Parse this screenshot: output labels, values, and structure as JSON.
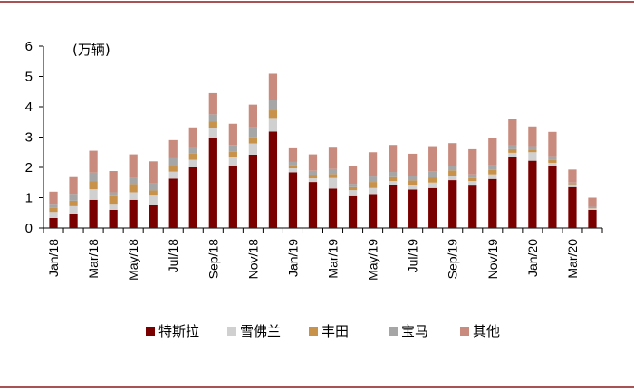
{
  "chart_data": {
    "type": "bar",
    "stacked": true,
    "unit_label": "(万辆)",
    "ylim": [
      0,
      6
    ],
    "yticks": [
      "0",
      "1",
      "2",
      "3",
      "4",
      "5",
      "6"
    ],
    "grid": false,
    "legend_position": "bottom",
    "categories": [
      "Jan/18",
      "Feb/18",
      "Mar/18",
      "Apr/18",
      "May/18",
      "Jun/18",
      "Jul/18",
      "Aug/18",
      "Sep/18",
      "Oct/18",
      "Nov/18",
      "Dec/18",
      "Jan/19",
      "Feb/19",
      "Mar/19",
      "Apr/19",
      "May/19",
      "Jun/19",
      "Jul/19",
      "Aug/19",
      "Sep/19",
      "Oct/19",
      "Nov/19",
      "Dec/19",
      "Jan/20",
      "Feb/20",
      "Mar/20",
      "Apr/20"
    ],
    "xtick_labels": [
      "Jan/18",
      "",
      "Mar/18",
      "",
      "May/18",
      "",
      "Jul/18",
      "",
      "Sep/18",
      "",
      "Nov/18",
      "",
      "Jan/19",
      "",
      "Mar/19",
      "",
      "May/19",
      "",
      "Jul/19",
      "",
      "Sep/19",
      "",
      "Nov/19",
      "",
      "Jan/20",
      "",
      "Mar/20",
      ""
    ],
    "series": [
      {
        "name": "特斯拉",
        "color": "#7a0000",
        "values": [
          0.33,
          0.45,
          0.93,
          0.6,
          0.93,
          0.77,
          1.63,
          2.0,
          2.97,
          2.04,
          2.42,
          3.18,
          1.84,
          1.52,
          1.3,
          1.05,
          1.12,
          1.43,
          1.27,
          1.32,
          1.58,
          1.4,
          1.62,
          2.33,
          2.22,
          2.03,
          1.35,
          0.6
        ]
      },
      {
        "name": "雪佛兰",
        "color": "#d0d0d0",
        "values": [
          0.2,
          0.27,
          0.35,
          0.2,
          0.25,
          0.3,
          0.23,
          0.25,
          0.33,
          0.3,
          0.37,
          0.45,
          0.13,
          0.12,
          0.35,
          0.2,
          0.2,
          0.12,
          0.15,
          0.18,
          0.15,
          0.15,
          0.15,
          0.15,
          0.28,
          0.12,
          0.05,
          0.05
        ]
      },
      {
        "name": "丰田",
        "color": "#c8924a",
        "values": [
          0.13,
          0.18,
          0.27,
          0.25,
          0.27,
          0.17,
          0.17,
          0.2,
          0.22,
          0.17,
          0.2,
          0.25,
          0.1,
          0.12,
          0.13,
          0.1,
          0.2,
          0.13,
          0.15,
          0.17,
          0.17,
          0.1,
          0.15,
          0.12,
          0.08,
          0.1,
          0.05,
          0.02
        ]
      },
      {
        "name": "宝马",
        "color": "#a6a6a6",
        "values": [
          0.14,
          0.23,
          0.28,
          0.13,
          0.2,
          0.23,
          0.27,
          0.22,
          0.23,
          0.23,
          0.33,
          0.33,
          0.11,
          0.13,
          0.17,
          0.11,
          0.18,
          0.17,
          0.15,
          0.2,
          0.15,
          0.12,
          0.15,
          0.12,
          0.12,
          0.12,
          0.05,
          0.03
        ]
      },
      {
        "name": "其他",
        "color": "#c98b7e",
        "values": [
          0.4,
          0.55,
          0.72,
          0.7,
          0.78,
          0.73,
          0.6,
          0.65,
          0.7,
          0.7,
          0.75,
          0.88,
          0.45,
          0.54,
          0.7,
          0.6,
          0.8,
          0.89,
          0.73,
          0.83,
          0.75,
          0.83,
          0.9,
          0.88,
          0.65,
          0.8,
          0.43,
          0.3
        ]
      }
    ]
  }
}
